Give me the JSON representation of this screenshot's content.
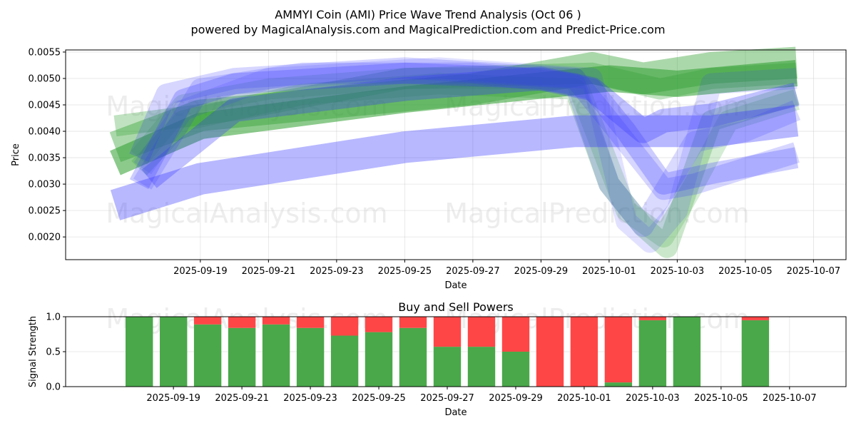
{
  "title_line1": "AMMYI Coin (AMI) Price Wave Trend Analysis (Oct 06 )",
  "title_line2": "powered by MagicalAnalysis.com and MagicalPrediction.com and Predict-Price.com",
  "watermarks": [
    "MagicalAnalysis.com",
    "MagicalPrediction.com"
  ],
  "colors": {
    "green": "#2e9e2e",
    "blue": "#3333ff",
    "bar_green": "#4aa84a",
    "bar_red": "#ff4646"
  },
  "chart_data": [
    {
      "type": "line",
      "title": "",
      "xlabel": "Date",
      "ylabel": "Price",
      "ylim": [
        0.00157,
        0.00554
      ],
      "x_range": [
        "2025-09-17",
        "2025-10-07"
      ],
      "grid": true,
      "yticks": [
        "0.0020",
        "0.0025",
        "0.0030",
        "0.0035",
        "0.0040",
        "0.0045",
        "0.0050",
        "0.0055"
      ],
      "xticks": [
        "2025-09-19",
        "2025-09-21",
        "2025-09-23",
        "2025-09-25",
        "2025-09-27",
        "2025-09-29",
        "2025-10-01",
        "2025-10-03",
        "2025-10-05",
        "2025-10-07"
      ],
      "series": [
        {
          "name": "green band 1",
          "color": "green",
          "opacity": 0.55,
          "width": 0.0005,
          "x": [
            -0.5,
            2,
            8,
            14,
            16,
            19.5
          ],
          "y": [
            0.0034,
            0.0041,
            0.0046,
            0.005,
            0.0049,
            0.0051
          ]
        },
        {
          "name": "green band 2",
          "color": "green",
          "opacity": 0.4,
          "width": 0.0006,
          "x": [
            -0.5,
            2,
            10,
            13.5,
            15,
            17,
            19.5
          ],
          "y": [
            0.0037,
            0.0043,
            0.0048,
            0.0052,
            0.005,
            0.0052,
            0.0053
          ]
        },
        {
          "name": "green band 3",
          "color": "green",
          "opacity": 0.3,
          "width": 0.0004,
          "x": [
            -0.5,
            3,
            8,
            13.5,
            15.5,
            17,
            19.5
          ],
          "y": [
            0.0041,
            0.0044,
            0.005,
            0.0051,
            0.0048,
            0.005,
            0.0051
          ]
        },
        {
          "name": "green band 4",
          "color": "green",
          "opacity": 0.25,
          "width": 0.0004,
          "x": [
            0.2,
            1.5,
            5,
            9,
            13,
            14,
            15,
            15.7,
            17,
            19.5
          ],
          "y": [
            0.0033,
            0.0042,
            0.0047,
            0.0049,
            0.0048,
            0.003,
            0.0022,
            0.0018,
            0.0042,
            0.0047
          ]
        },
        {
          "name": "green band 5",
          "color": "green",
          "opacity": 0.2,
          "width": 0.0004,
          "x": [
            0.2,
            1.5,
            4,
            8,
            13,
            14.5,
            15.6,
            16.5,
            17.5,
            19.5
          ],
          "y": [
            0.0035,
            0.0045,
            0.0048,
            0.005,
            0.005,
            0.0025,
            0.002,
            0.003,
            0.0042,
            0.0046
          ]
        },
        {
          "name": "blue band 1",
          "color": "blue",
          "opacity": 0.35,
          "width": 0.0006,
          "x": [
            -0.5,
            2,
            8,
            13,
            15,
            17,
            19.5
          ],
          "y": [
            0.0026,
            0.0031,
            0.0037,
            0.004,
            0.004,
            0.004,
            0.0042
          ]
        },
        {
          "name": "blue band 2",
          "color": "blue",
          "opacity": 0.3,
          "width": 0.00045,
          "x": [
            0.5,
            3,
            8,
            12,
            13.5,
            15,
            15.6,
            17,
            19.5
          ],
          "y": [
            0.0031,
            0.0044,
            0.0048,
            0.005,
            0.0048,
            0.004,
            0.0042,
            0.0043,
            0.0047
          ]
        },
        {
          "name": "blue band 3",
          "color": "blue",
          "opacity": 0.25,
          "width": 0.0004,
          "x": [
            0.2,
            1.5,
            3,
            8,
            12,
            13.5,
            14.5,
            15.6,
            17,
            19.5
          ],
          "y": [
            0.003,
            0.0046,
            0.0049,
            0.0051,
            0.005,
            0.0048,
            0.004,
            0.003,
            0.0032,
            0.0035
          ]
        },
        {
          "name": "blue band 4",
          "color": "blue",
          "opacity": 0.2,
          "width": 0.0004,
          "x": [
            0.2,
            1,
            3,
            8,
            13,
            14,
            15.6,
            16.5,
            18,
            19.5
          ],
          "y": [
            0.0035,
            0.0047,
            0.005,
            0.0052,
            0.005,
            0.0042,
            0.0029,
            0.003,
            0.0033,
            0.0036
          ]
        },
        {
          "name": "blue band 5",
          "color": "blue",
          "opacity": 0.18,
          "width": 0.0004,
          "x": [
            0.3,
            2,
            5,
            10,
            13,
            14,
            15,
            16.5,
            18,
            19.5
          ],
          "y": [
            0.003,
            0.0048,
            0.0051,
            0.0051,
            0.0049,
            0.003,
            0.0022,
            0.0038,
            0.004,
            0.0044
          ]
        },
        {
          "name": "blue band 6",
          "color": "blue",
          "opacity": 0.15,
          "width": 0.0004,
          "x": [
            0.3,
            1.5,
            4,
            9,
            13.5,
            14.5,
            15.2,
            16,
            17,
            19.5
          ],
          "y": [
            0.0033,
            0.0044,
            0.005,
            0.0052,
            0.005,
            0.0023,
            0.0019,
            0.0025,
            0.0049,
            0.005
          ]
        }
      ]
    },
    {
      "type": "bar",
      "title": "Buy and Sell Powers",
      "xlabel": "Date",
      "ylabel": "Signal Strength",
      "ylim": [
        0,
        1
      ],
      "yticks": [
        "0.0",
        "0.5",
        "1.0"
      ],
      "xticks": [
        "2025-09-19",
        "2025-09-21",
        "2025-09-23",
        "2025-09-25",
        "2025-09-27",
        "2025-09-29",
        "2025-10-01",
        "2025-10-03",
        "2025-10-05",
        "2025-10-07"
      ],
      "categories": [
        "2025-09-18",
        "2025-09-19",
        "2025-09-20",
        "2025-09-21",
        "2025-09-22",
        "2025-09-23",
        "2025-09-24",
        "2025-09-25",
        "2025-09-26",
        "2025-09-27",
        "2025-09-28",
        "2025-09-29",
        "2025-09-30",
        "2025-10-01",
        "2025-10-02",
        "2025-10-03",
        "2025-10-04",
        "2025-10-06"
      ],
      "series": [
        {
          "name": "Buy",
          "color": "bar_green",
          "values": [
            1.0,
            1.0,
            0.89,
            0.84,
            0.89,
            0.84,
            0.73,
            0.78,
            0.84,
            0.57,
            0.57,
            0.5,
            0.0,
            0.0,
            0.06,
            0.95,
            1.0,
            0.95
          ]
        },
        {
          "name": "Sell",
          "color": "bar_red",
          "values": [
            0.0,
            0.0,
            0.11,
            0.16,
            0.11,
            0.16,
            0.27,
            0.22,
            0.16,
            0.43,
            0.43,
            0.5,
            1.0,
            1.0,
            0.94,
            0.05,
            0.0,
            0.05
          ]
        }
      ]
    }
  ]
}
